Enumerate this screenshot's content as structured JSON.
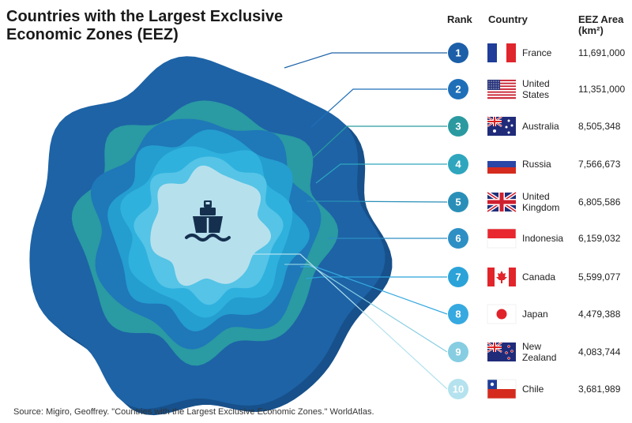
{
  "title": "Countries with the Largest Exclusive Economic Zones (EEZ)",
  "headers": {
    "rank": "Rank",
    "country": "Country",
    "area_line1": "EEZ Area",
    "area_line2": "(km²)"
  },
  "source": "Source: Migiro, Geoffrey. \"Countries with the Largest Exclusive Economic Zones.\" WorldAtlas.",
  "colors": {
    "rank_badges": [
      "#1c5fa8",
      "#1f6fb8",
      "#2a9aa0",
      "#2fa6be",
      "#2a8fb8",
      "#2e8fc4",
      "#2ba3d9",
      "#36a9e0",
      "#86cde2",
      "#b4e2ee"
    ]
  },
  "chart_data": {
    "type": "table",
    "columns": [
      "Rank",
      "Country",
      "EEZ Area (km²)"
    ],
    "rows": [
      {
        "rank": 1,
        "country": "France",
        "flag": "france-flag",
        "area": 11691000,
        "area_label": "11,691,000"
      },
      {
        "rank": 2,
        "country": "United States",
        "country_lines": [
          "United",
          "States"
        ],
        "flag": "usa-flag",
        "area": 11351000,
        "area_label": "11,351,000"
      },
      {
        "rank": 3,
        "country": "Australia",
        "flag": "australia-flag",
        "area": 8505348,
        "area_label": "8,505,348"
      },
      {
        "rank": 4,
        "country": "Russia",
        "flag": "russia-flag",
        "area": 7566673,
        "area_label": "7,566,673"
      },
      {
        "rank": 5,
        "country": "United Kingdom",
        "country_lines": [
          "United",
          "Kingdom"
        ],
        "flag": "uk-flag",
        "area": 6805586,
        "area_label": "6,805,586"
      },
      {
        "rank": 6,
        "country": "Indonesia",
        "flag": "indonesia-flag",
        "area": 6159032,
        "area_label": "6,159,032"
      },
      {
        "rank": 7,
        "country": "Canada",
        "flag": "canada-flag",
        "area": 5599077,
        "area_label": "5,599,077"
      },
      {
        "rank": 8,
        "country": "Japan",
        "flag": "japan-flag",
        "area": 4479388,
        "area_label": "4,479,388"
      },
      {
        "rank": 9,
        "country": "New Zealand",
        "country_lines": [
          "New",
          "Zealand"
        ],
        "flag": "new-zealand-flag",
        "area": 4083744,
        "area_label": "4,083,744"
      },
      {
        "rank": 10,
        "country": "Chile",
        "flag": "chile-flag",
        "area": 3681989,
        "area_label": "3,681,989"
      }
    ]
  }
}
